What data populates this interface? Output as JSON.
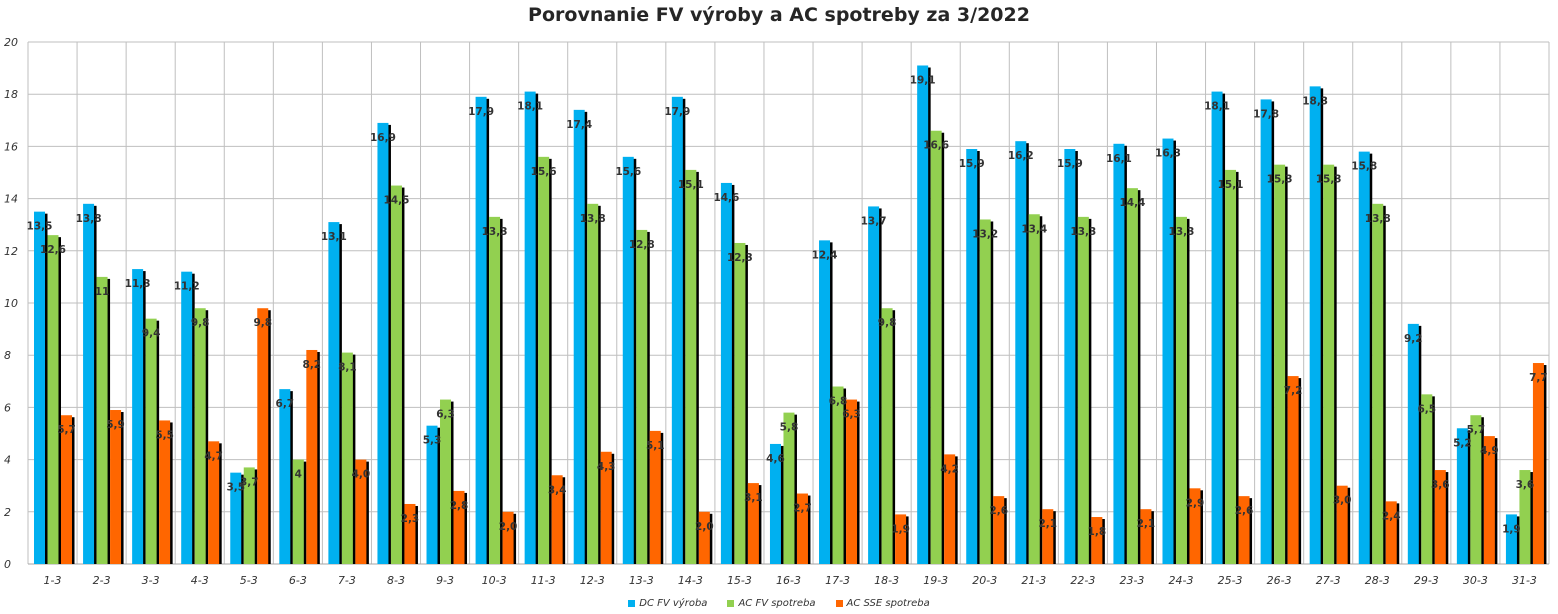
{
  "chart_data": {
    "type": "bar",
    "title": "Porovnanie FV výroby a AC spotreby za 3/2022",
    "xlabel": "",
    "ylabel": "",
    "ylim": [
      0,
      20
    ],
    "yticks": [
      0,
      2,
      4,
      6,
      8,
      10,
      12,
      14,
      16,
      18,
      20
    ],
    "ytick_labels": [
      "0",
      "2",
      "4",
      "6",
      "8",
      "10",
      "12",
      "14",
      "16",
      "18",
      "20"
    ],
    "grid": true,
    "legend_position": "bottom",
    "categories": [
      "1-3",
      "2-3",
      "3-3",
      "4-3",
      "5-3",
      "6-3",
      "7-3",
      "8-3",
      "9-3",
      "10-3",
      "11-3",
      "12-3",
      "13-3",
      "14-3",
      "15-3",
      "16-3",
      "17-3",
      "18-3",
      "19-3",
      "20-3",
      "21-3",
      "22-3",
      "23-3",
      "24-3",
      "25-3",
      "26-3",
      "27-3",
      "28-3",
      "29-3",
      "30-3",
      "31-3"
    ],
    "series": [
      {
        "name": "DC FV výroba",
        "color": "#00B0F0",
        "values": [
          13.5,
          13.8,
          11.3,
          11.2,
          3.5,
          6.7,
          13.1,
          16.9,
          5.3,
          17.9,
          18.1,
          17.4,
          15.6,
          17.9,
          14.6,
          4.6,
          12.4,
          13.7,
          19.1,
          15.9,
          16.2,
          15.9,
          16.1,
          16.3,
          18.1,
          17.8,
          18.3,
          15.8,
          9.2,
          5.2,
          1.9
        ],
        "labels": [
          "13,5",
          "13,8",
          "11,3",
          "11,2",
          "3,5",
          "6,7",
          "13,1",
          "16,9",
          "5,3",
          "17,9",
          "18,1",
          "17,4",
          "15,6",
          "17,9",
          "14,6",
          "4,6",
          "12,4",
          "13,7",
          "19,1",
          "15,9",
          "16,2",
          "15,9",
          "16,1",
          "16,3",
          "18,1",
          "17,8",
          "18,3",
          "15,8",
          "9,2",
          "5,2",
          "1,9"
        ]
      },
      {
        "name": "AC FV spotreba",
        "color": "#92D050",
        "values": [
          12.6,
          11,
          9.4,
          9.8,
          3.7,
          4,
          8.1,
          14.5,
          6.3,
          13.3,
          15.6,
          13.8,
          12.8,
          15.1,
          12.3,
          5.8,
          6.8,
          9.8,
          16.6,
          13.2,
          13.4,
          13.3,
          14.4,
          13.3,
          15.1,
          15.3,
          15.3,
          13.8,
          6.5,
          5.7,
          3.6
        ],
        "labels": [
          "12,6",
          "11",
          "9,4",
          "9,8",
          "3,7",
          "4",
          "8,1",
          "14,5",
          "6,3",
          "13,3",
          "15,6",
          "13,8",
          "12,8",
          "15,1",
          "12,3",
          "5,8",
          "6,8",
          "9,8",
          "16,6",
          "13,2",
          "13,4",
          "13,3",
          "14,4",
          "13,3",
          "15,1",
          "15,3",
          "15,3",
          "13,8",
          "6,5",
          "5,7",
          "3,6"
        ]
      },
      {
        "name": "AC SSE spotreba",
        "color": "#FF6600",
        "values": [
          5.7,
          5.9,
          5.5,
          4.7,
          9.8,
          8.2,
          4.0,
          2.3,
          2.8,
          2.0,
          3.4,
          4.3,
          5.1,
          2.0,
          3.1,
          2.7,
          6.3,
          1.9,
          4.2,
          2.6,
          2.1,
          1.8,
          2.1,
          2.9,
          2.6,
          7.2,
          3.0,
          2.4,
          3.6,
          4.9,
          7.7
        ],
        "labels": [
          "5,7",
          "5,9",
          "5,5",
          "4,7",
          "9,8",
          "8,2",
          "4,0",
          "2,3",
          "2,8",
          "2,0",
          "3,4",
          "4,3",
          "5,1",
          "2,0",
          "3,1",
          "2,7",
          "6,3",
          "1,9",
          "4,2",
          "2,6",
          "2,1",
          "1,8",
          "2,1",
          "2,9",
          "2,6",
          "7,2",
          "3,0",
          "2,4",
          "3,6",
          "4,9",
          "7,7"
        ]
      }
    ]
  }
}
